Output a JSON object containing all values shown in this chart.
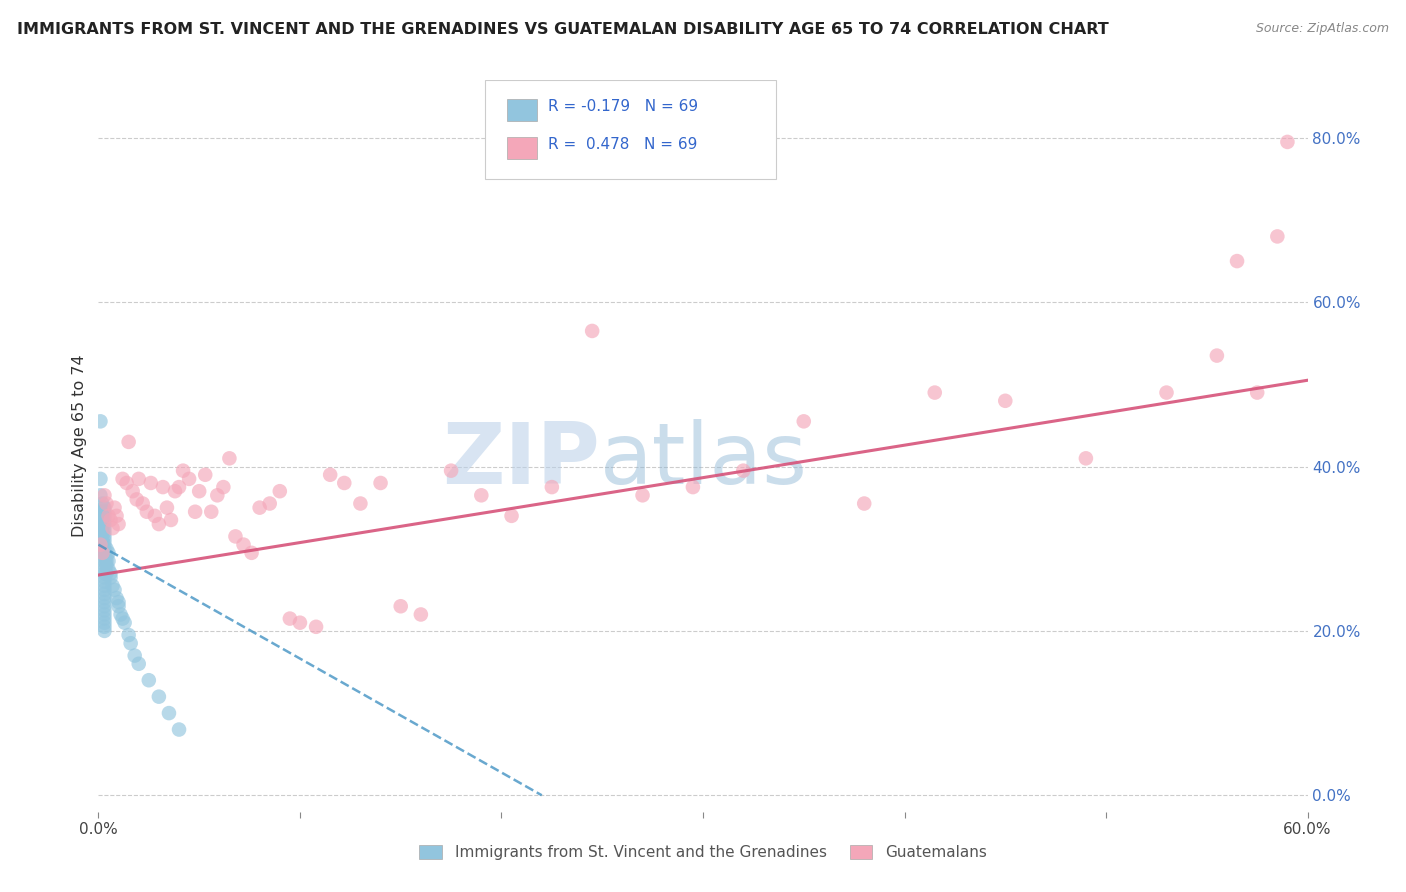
{
  "title": "IMMIGRANTS FROM ST. VINCENT AND THE GRENADINES VS GUATEMALAN DISABILITY AGE 65 TO 74 CORRELATION CHART",
  "source": "Source: ZipAtlas.com",
  "ylabel": "Disability Age 65 to 74",
  "legend_label_blue": "Immigrants from St. Vincent and the Grenadines",
  "legend_label_pink": "Guatemalans",
  "blue_color": "#92c5de",
  "pink_color": "#f4a7b9",
  "blue_line_color": "#4393c3",
  "pink_line_color": "#d6537a",
  "watermark_zip": "ZIP",
  "watermark_atlas": "atlas",
  "xmin": 0.0,
  "xmax": 0.6,
  "ymin": -0.02,
  "ymax": 0.87,
  "right_yticks": [
    0.0,
    0.2,
    0.4,
    0.6,
    0.8
  ],
  "right_yticklabels": [
    "0.0%",
    "20.0%",
    "40.0%",
    "60.0%",
    "80.0%"
  ],
  "xticks": [
    0.0,
    0.1,
    0.2,
    0.3,
    0.4,
    0.5,
    0.6
  ],
  "xticklabels_sparse": [
    "0.0%",
    "",
    "",
    "",
    "",
    "",
    "60.0%"
  ],
  "blue_x": [
    0.001,
    0.001,
    0.001,
    0.0015,
    0.0015,
    0.002,
    0.002,
    0.002,
    0.002,
    0.002,
    0.0025,
    0.003,
    0.003,
    0.003,
    0.003,
    0.003,
    0.003,
    0.003,
    0.003,
    0.003,
    0.003,
    0.003,
    0.003,
    0.003,
    0.003,
    0.003,
    0.003,
    0.003,
    0.003,
    0.003,
    0.003,
    0.003,
    0.003,
    0.003,
    0.003,
    0.003,
    0.003,
    0.003,
    0.003,
    0.003,
    0.003,
    0.003,
    0.003,
    0.004,
    0.004,
    0.004,
    0.004,
    0.004,
    0.005,
    0.005,
    0.005,
    0.006,
    0.006,
    0.007,
    0.008,
    0.009,
    0.01,
    0.01,
    0.011,
    0.012,
    0.013,
    0.015,
    0.016,
    0.018,
    0.02,
    0.025,
    0.03,
    0.035,
    0.04
  ],
  "blue_y": [
    0.455,
    0.385,
    0.365,
    0.345,
    0.325,
    0.355,
    0.34,
    0.33,
    0.32,
    0.31,
    0.35,
    0.35,
    0.345,
    0.34,
    0.335,
    0.33,
    0.325,
    0.32,
    0.315,
    0.31,
    0.305,
    0.3,
    0.295,
    0.29,
    0.285,
    0.28,
    0.275,
    0.27,
    0.265,
    0.26,
    0.255,
    0.25,
    0.245,
    0.24,
    0.235,
    0.23,
    0.225,
    0.22,
    0.215,
    0.21,
    0.205,
    0.2,
    0.295,
    0.29,
    0.285,
    0.28,
    0.27,
    0.3,
    0.295,
    0.285,
    0.275,
    0.27,
    0.265,
    0.255,
    0.25,
    0.24,
    0.235,
    0.23,
    0.22,
    0.215,
    0.21,
    0.195,
    0.185,
    0.17,
    0.16,
    0.14,
    0.12,
    0.1,
    0.08
  ],
  "pink_x": [
    0.001,
    0.002,
    0.003,
    0.004,
    0.005,
    0.006,
    0.007,
    0.008,
    0.009,
    0.01,
    0.012,
    0.014,
    0.015,
    0.017,
    0.019,
    0.02,
    0.022,
    0.024,
    0.026,
    0.028,
    0.03,
    0.032,
    0.034,
    0.036,
    0.038,
    0.04,
    0.042,
    0.045,
    0.048,
    0.05,
    0.053,
    0.056,
    0.059,
    0.062,
    0.065,
    0.068,
    0.072,
    0.076,
    0.08,
    0.085,
    0.09,
    0.095,
    0.1,
    0.108,
    0.115,
    0.122,
    0.13,
    0.14,
    0.15,
    0.16,
    0.175,
    0.19,
    0.205,
    0.225,
    0.245,
    0.27,
    0.295,
    0.32,
    0.35,
    0.38,
    0.415,
    0.45,
    0.49,
    0.53,
    0.555,
    0.565,
    0.575,
    0.585,
    0.59
  ],
  "pink_y": [
    0.305,
    0.295,
    0.365,
    0.355,
    0.34,
    0.335,
    0.325,
    0.35,
    0.34,
    0.33,
    0.385,
    0.38,
    0.43,
    0.37,
    0.36,
    0.385,
    0.355,
    0.345,
    0.38,
    0.34,
    0.33,
    0.375,
    0.35,
    0.335,
    0.37,
    0.375,
    0.395,
    0.385,
    0.345,
    0.37,
    0.39,
    0.345,
    0.365,
    0.375,
    0.41,
    0.315,
    0.305,
    0.295,
    0.35,
    0.355,
    0.37,
    0.215,
    0.21,
    0.205,
    0.39,
    0.38,
    0.355,
    0.38,
    0.23,
    0.22,
    0.395,
    0.365,
    0.34,
    0.375,
    0.565,
    0.365,
    0.375,
    0.395,
    0.455,
    0.355,
    0.49,
    0.48,
    0.41,
    0.49,
    0.535,
    0.65,
    0.49,
    0.68,
    0.795
  ],
  "pink_trend_start_y": 0.268,
  "pink_trend_end_y": 0.505,
  "blue_trend_start_y": 0.305,
  "blue_trend_end_x": 0.22
}
